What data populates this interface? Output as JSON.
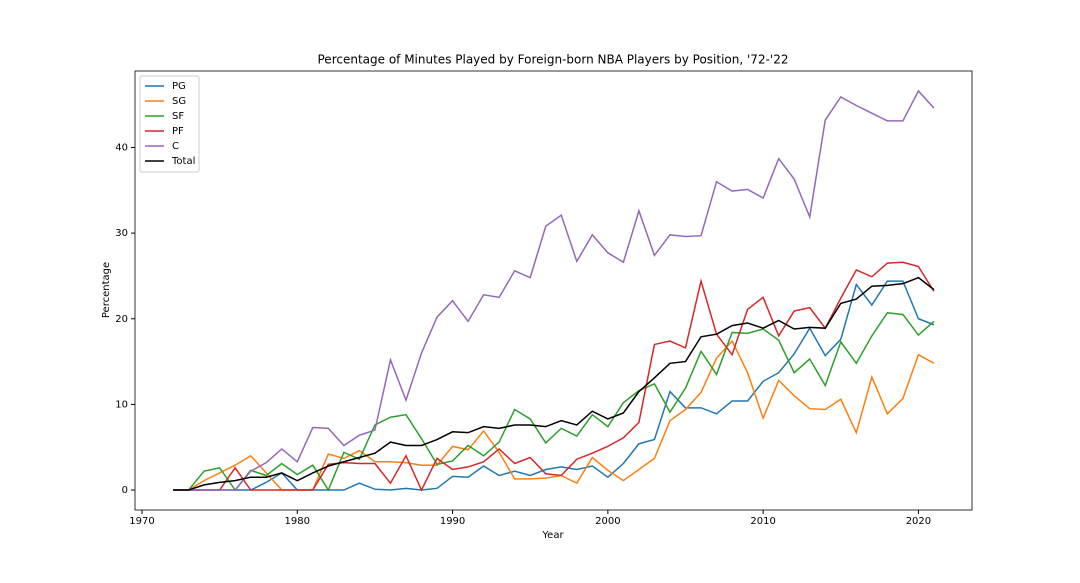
{
  "chart_data": {
    "type": "line",
    "title": "Percentage of Minutes Played by Foreign-born NBA Players by Position, '72-'22",
    "x_label": "Year",
    "y_label": "Percentage",
    "x": [
      1972,
      1973,
      1974,
      1975,
      1976,
      1977,
      1978,
      1979,
      1980,
      1981,
      1982,
      1983,
      1984,
      1985,
      1986,
      1987,
      1988,
      1989,
      1990,
      1991,
      1992,
      1993,
      1994,
      1995,
      1996,
      1997,
      1998,
      1999,
      2000,
      2001,
      2002,
      2003,
      2004,
      2005,
      2006,
      2007,
      2008,
      2009,
      2010,
      2011,
      2012,
      2013,
      2014,
      2015,
      2016,
      2017,
      2018,
      2019,
      2020,
      2021
    ],
    "series": [
      {
        "name": "PG",
        "color": "#1f77b4",
        "values": [
          0,
          0,
          0,
          0,
          0,
          0,
          0.9,
          2.0,
          0,
          0,
          0,
          0,
          0.8,
          0.1,
          0,
          0.2,
          0,
          0.2,
          1.6,
          1.5,
          2.8,
          1.7,
          2.2,
          1.7,
          2.4,
          2.7,
          2.4,
          2.8,
          1.5,
          3.1,
          5.4,
          5.9,
          11.5,
          9.6,
          9.6,
          8.9,
          10.4,
          10.4,
          12.7,
          13.7,
          15.9,
          18.9,
          15.7,
          17.6,
          24.0,
          21.6,
          24.4,
          24.4,
          20.0,
          19.3
        ]
      },
      {
        "name": "SG",
        "color": "#ff7f0e",
        "values": [
          0,
          0,
          1.1,
          2.0,
          2.9,
          4.0,
          2.0,
          0,
          0,
          0,
          4.2,
          3.7,
          4.6,
          3.3,
          3.3,
          3.2,
          2.9,
          2.9,
          5.1,
          4.7,
          6.9,
          4.4,
          1.3,
          1.3,
          1.4,
          1.7,
          0.8,
          3.8,
          2.3,
          1.1,
          2.4,
          3.7,
          8.1,
          9.4,
          11.4,
          15.4,
          17.4,
          13.7,
          8.4,
          12.8,
          11.0,
          9.5,
          9.4,
          10.6,
          6.7,
          13.2,
          8.9,
          10.7,
          15.8,
          14.8
        ]
      },
      {
        "name": "SF",
        "color": "#2ca02c",
        "values": [
          0,
          0,
          2.2,
          2.6,
          0,
          2.3,
          1.7,
          3.1,
          1.8,
          2.9,
          0,
          4.4,
          3.6,
          7.6,
          8.5,
          8.8,
          6.0,
          3.0,
          3.4,
          5.2,
          4.0,
          5.6,
          9.4,
          8.3,
          5.5,
          7.2,
          6.3,
          8.8,
          7.4,
          10.2,
          11.6,
          12.4,
          9.1,
          11.9,
          16.2,
          13.5,
          18.4,
          18.3,
          18.8,
          17.5,
          13.7,
          15.3,
          12.2,
          17.3,
          14.8,
          18.0,
          20.7,
          20.5,
          18.1,
          19.7
        ]
      },
      {
        "name": "PF",
        "color": "#d62728",
        "values": [
          0,
          0,
          0,
          0,
          2.6,
          0,
          0,
          0,
          0,
          0,
          3.0,
          3.2,
          3.1,
          3.1,
          0.8,
          4.0,
          0,
          3.7,
          2.4,
          2.7,
          3.3,
          4.8,
          3.1,
          3.8,
          1.9,
          1.7,
          3.6,
          4.3,
          5.1,
          6.1,
          7.9,
          17.0,
          17.4,
          16.6,
          24.4,
          18.2,
          15.8,
          21.1,
          22.5,
          18.0,
          20.9,
          21.3,
          18.9,
          22.4,
          25.7,
          24.9,
          26.5,
          26.6,
          26.1,
          23.2
        ]
      },
      {
        "name": "C",
        "color": "#9467bd",
        "values": [
          0,
          0,
          0,
          0,
          0,
          2.2,
          3.2,
          4.8,
          3.3,
          7.3,
          7.2,
          5.2,
          6.4,
          7.0,
          15.2,
          10.5,
          16.0,
          20.2,
          22.1,
          19.7,
          22.8,
          22.5,
          25.6,
          24.8,
          30.8,
          32.1,
          26.7,
          29.8,
          27.7,
          26.6,
          32.6,
          27.4,
          29.8,
          29.6,
          29.7,
          36.0,
          34.9,
          35.1,
          34.1,
          38.7,
          36.3,
          31.9,
          43.2,
          45.9,
          44.9,
          44.0,
          43.1,
          43.1,
          46.6,
          44.6
        ]
      },
      {
        "name": "Total",
        "color": "#000000",
        "values": [
          0,
          0,
          0.6,
          0.9,
          1.1,
          1.5,
          1.5,
          2.0,
          1.1,
          2.0,
          2.8,
          3.3,
          3.8,
          4.3,
          5.6,
          5.2,
          5.2,
          5.9,
          6.8,
          6.7,
          7.4,
          7.2,
          7.6,
          7.6,
          7.4,
          8.1,
          7.6,
          9.2,
          8.3,
          9.0,
          11.5,
          13.1,
          14.8,
          15.0,
          17.9,
          18.2,
          19.2,
          19.5,
          18.9,
          19.8,
          18.8,
          19.0,
          18.9,
          21.8,
          22.3,
          23.8,
          23.9,
          24.1,
          24.8,
          23.4
        ]
      }
    ],
    "xlim": [
      1969.55,
      2023.45
    ],
    "xticks": [
      1970,
      1980,
      1990,
      2000,
      2010,
      2020
    ],
    "ylim": [
      -2.33,
      48.93
    ],
    "yticks": [
      0,
      10,
      20,
      30,
      40
    ],
    "legend": "upper left",
    "grid": false
  }
}
